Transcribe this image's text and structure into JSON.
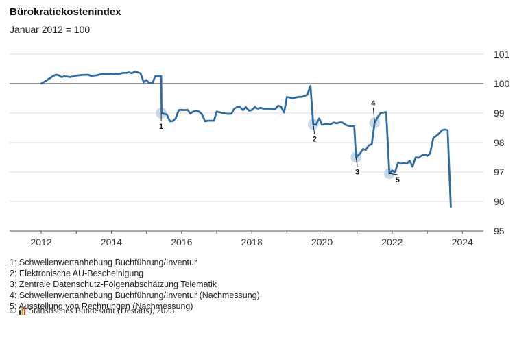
{
  "header": {
    "title": "Bürokratiekostenindex",
    "subtitle": "Januar 2012 = 100"
  },
  "notes": [
    "1: Schwellenwertanhebung Buchführung/Inventur",
    "2: Elektronische AU-Bescheinigung",
    "3: Zentrale Datenschutz-Folgenabschätzung Telematik",
    "4: Schwellenwertanhebung Buchführung/Inventur (Nachmessung)",
    "5: Ausstellung von Rechnungen (Nachmessung)"
  ],
  "footer": {
    "copyright_symbol": "©",
    "source": "Statistisches Bundesamt (Destatis), 2023"
  },
  "colors": {
    "line": "#2f6da6",
    "marker": "#c8d9ea",
    "grid": "#dddddd",
    "reference_line": "#555555",
    "axis": "#555555"
  },
  "chart_data": {
    "type": "line",
    "title": "Bürokratiekostenindex",
    "subtitle": "Januar 2012 = 100",
    "xlabel": "",
    "ylabel": "",
    "xlim": [
      2011.1,
      2024.6
    ],
    "ylim": [
      95,
      101.3
    ],
    "x_ticks": [
      2012,
      2014,
      2016,
      2018,
      2020,
      2022,
      2024
    ],
    "y_ticks": [
      95,
      96,
      97,
      98,
      99,
      100,
      101
    ],
    "grid": true,
    "reference_y": 100,
    "series": [
      {
        "values": [
          [
            2012.0,
            100.0
          ],
          [
            2012.17,
            100.12
          ],
          [
            2012.33,
            100.25
          ],
          [
            2012.42,
            100.3
          ],
          [
            2012.5,
            100.28
          ],
          [
            2012.58,
            100.22
          ],
          [
            2012.67,
            100.25
          ],
          [
            2012.83,
            100.22
          ],
          [
            2013.0,
            100.27
          ],
          [
            2013.17,
            100.29
          ],
          [
            2013.33,
            100.3
          ],
          [
            2013.42,
            100.26
          ],
          [
            2013.58,
            100.28
          ],
          [
            2013.75,
            100.33
          ],
          [
            2014.0,
            100.33
          ],
          [
            2014.17,
            100.32
          ],
          [
            2014.33,
            100.36
          ],
          [
            2014.42,
            100.36
          ],
          [
            2014.5,
            100.38
          ],
          [
            2014.58,
            100.35
          ],
          [
            2014.67,
            100.4
          ],
          [
            2014.75,
            100.38
          ],
          [
            2014.83,
            100.35
          ],
          [
            2014.92,
            100.05
          ],
          [
            2015.0,
            100.12
          ],
          [
            2015.08,
            100.02
          ],
          [
            2015.17,
            100.02
          ],
          [
            2015.25,
            100.25
          ],
          [
            2015.42,
            100.25
          ],
          [
            2015.43,
            99.0
          ],
          [
            2015.58,
            98.95
          ],
          [
            2015.67,
            98.72
          ],
          [
            2015.75,
            98.73
          ],
          [
            2015.83,
            98.82
          ],
          [
            2015.92,
            99.1
          ],
          [
            2016.0,
            99.11
          ],
          [
            2016.08,
            99.1
          ],
          [
            2016.17,
            99.11
          ],
          [
            2016.25,
            98.98
          ],
          [
            2016.33,
            99.05
          ],
          [
            2016.42,
            99.08
          ],
          [
            2016.5,
            99.05
          ],
          [
            2016.58,
            98.96
          ],
          [
            2016.67,
            98.72
          ],
          [
            2016.75,
            98.74
          ],
          [
            2016.92,
            98.74
          ],
          [
            2017.0,
            99.05
          ],
          [
            2017.17,
            99.0
          ],
          [
            2017.33,
            98.97
          ],
          [
            2017.42,
            98.98
          ],
          [
            2017.5,
            99.15
          ],
          [
            2017.58,
            99.2
          ],
          [
            2017.67,
            99.2
          ],
          [
            2017.75,
            99.1
          ],
          [
            2017.83,
            99.2
          ],
          [
            2017.92,
            99.08
          ],
          [
            2018.0,
            99.1
          ],
          [
            2018.08,
            99.2
          ],
          [
            2018.17,
            99.15
          ],
          [
            2018.25,
            99.18
          ],
          [
            2018.33,
            99.15
          ],
          [
            2018.5,
            99.15
          ],
          [
            2018.67,
            99.14
          ],
          [
            2018.75,
            99.25
          ],
          [
            2018.83,
            99.22
          ],
          [
            2018.92,
            99.02
          ],
          [
            2019.0,
            99.55
          ],
          [
            2019.17,
            99.5
          ],
          [
            2019.33,
            99.55
          ],
          [
            2019.42,
            99.55
          ],
          [
            2019.58,
            99.62
          ],
          [
            2019.67,
            99.92
          ],
          [
            2019.75,
            98.62
          ],
          [
            2019.83,
            98.6
          ],
          [
            2019.92,
            98.82
          ],
          [
            2020.0,
            98.6
          ],
          [
            2020.08,
            98.62
          ],
          [
            2020.17,
            98.62
          ],
          [
            2020.25,
            98.62
          ],
          [
            2020.33,
            98.68
          ],
          [
            2020.42,
            98.65
          ],
          [
            2020.5,
            98.68
          ],
          [
            2020.58,
            98.68
          ],
          [
            2020.67,
            98.6
          ],
          [
            2020.75,
            98.57
          ],
          [
            2020.83,
            98.55
          ],
          [
            2020.92,
            98.55
          ],
          [
            2020.97,
            97.5
          ],
          [
            2021.08,
            97.62
          ],
          [
            2021.17,
            97.78
          ],
          [
            2021.25,
            97.75
          ],
          [
            2021.33,
            97.9
          ],
          [
            2021.42,
            97.95
          ],
          [
            2021.5,
            98.67
          ],
          [
            2021.58,
            98.85
          ],
          [
            2021.67,
            99.0
          ],
          [
            2021.75,
            99.02
          ],
          [
            2021.83,
            99.03
          ],
          [
            2021.92,
            96.95
          ],
          [
            2022.0,
            97.05
          ],
          [
            2022.08,
            97.0
          ],
          [
            2022.17,
            97.32
          ],
          [
            2022.25,
            97.28
          ],
          [
            2022.33,
            97.3
          ],
          [
            2022.42,
            97.28
          ],
          [
            2022.5,
            97.38
          ],
          [
            2022.58,
            97.18
          ],
          [
            2022.67,
            97.5
          ],
          [
            2022.75,
            97.48
          ],
          [
            2022.83,
            97.55
          ],
          [
            2022.92,
            97.6
          ],
          [
            2023.0,
            97.55
          ],
          [
            2023.08,
            97.62
          ],
          [
            2023.17,
            98.15
          ],
          [
            2023.25,
            98.22
          ],
          [
            2023.33,
            98.3
          ],
          [
            2023.42,
            98.42
          ],
          [
            2023.5,
            98.44
          ],
          [
            2023.58,
            98.42
          ],
          [
            2023.67,
            95.82
          ]
        ]
      }
    ],
    "annotations": [
      {
        "label": "1",
        "x": 2015.42,
        "y": 99.0
      },
      {
        "label": "2",
        "x": 2019.75,
        "y": 98.62
      },
      {
        "label": "3",
        "x": 2020.97,
        "y": 97.5
      },
      {
        "label": "4",
        "x": 2021.5,
        "y": 98.67
      },
      {
        "label": "5",
        "x": 2021.92,
        "y": 96.95
      }
    ]
  }
}
